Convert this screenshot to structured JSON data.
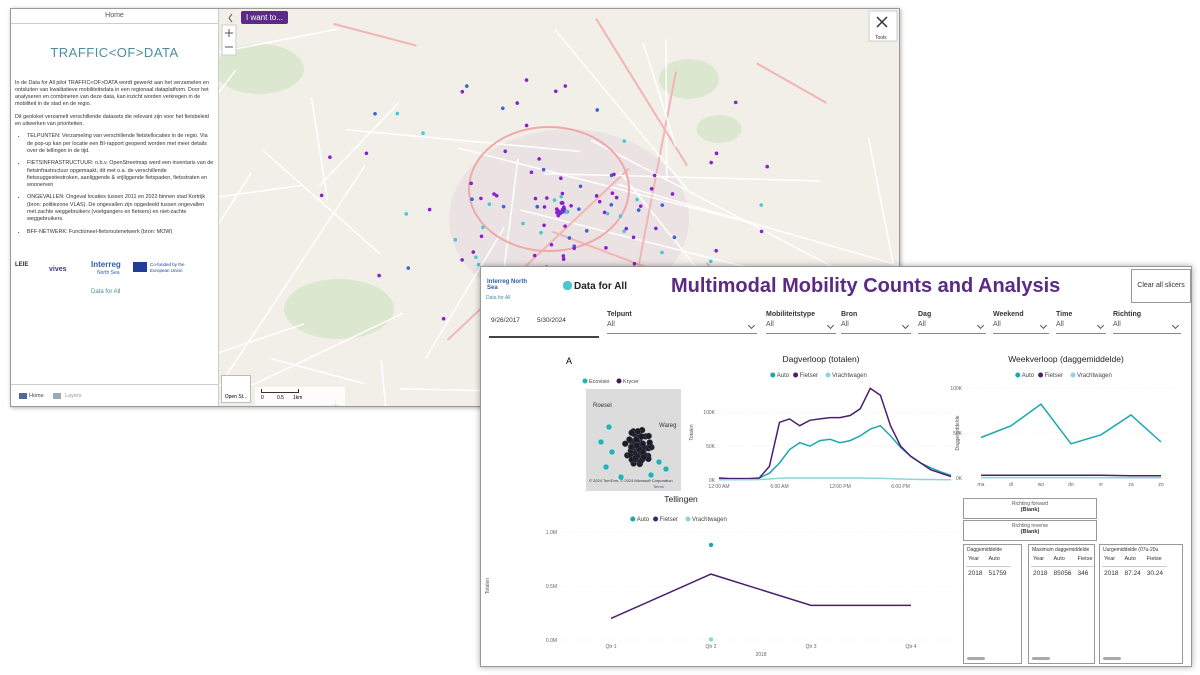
{
  "map_app": {
    "sidebar_tab": "Home",
    "title": "TRAFFIC<OF>DATA",
    "intro": "In de Data for All pilot TRAFFIC<OF>DATA wordt gewerkt aan het verzamelen en ontsluiten van kwalitatieve mobiliteitsdata in een regionaal dataplatform. Door het analyseren en combineren van deze data, kan inzicht worden verkregen in de mobiliteit in de stad en de regio.",
    "paragraph": "Dit geoloket verzamelt verschillende datasets die relevant zijn voor het fietsbeleid en uitwerken van prioriteiten.",
    "bullets": [
      "TELPUNTEN: Verzameling van verschillende fietstellocaties in de regio. Via de pop-up kan per locatie een BI-rapport geopend worden met meer details over de tellingen in de tijd.",
      "FIETSINFRASTRUCTUUR: o.b.v. OpenStreetmap werd een inventaris van de fietsinfrastructuur opgemaakt, dit met o.a. de verschillende fietssuggestiestroken, aanliggende & vrijliggende fietspaden, fietsstraten en woonerven",
      "ONGEVALLEN: Ongeval locaties tussen 2011 en 2022 binnen stad Kortrijk (bron: politiezone VLAS). De ongevallen zijn opgedeeld tussen ongevallen met zachte weggebruikers (voetgangers en fietsers) en niet-zachte weggebruikers.",
      "BFF-NETWERK: Functioneel-fietsroutenetwerk (bron: MOW)"
    ],
    "logos": [
      "LEIE",
      "vives",
      "Interreg",
      "North Sea",
      "Co-funded by the European Union"
    ],
    "link": "Data for All",
    "tabs": [
      "Home",
      "Layers"
    ],
    "button": "I want to...",
    "tools": "Tools",
    "basemap": "Open St...",
    "scale": [
      "0",
      "0.5",
      "1km"
    ]
  },
  "dashboard": {
    "title": "Multimodal Mobility Counts and Analysis",
    "logo": "Data for All",
    "partner": "Interreg North Sea",
    "link": "Data for All",
    "clear": "Clear all slicers",
    "date_range": [
      "9/26/2017",
      "5/30/2024"
    ],
    "slicers": [
      {
        "label": "Telpunt",
        "value": "All"
      },
      {
        "label": "Mobiliteitstype",
        "value": "All"
      },
      {
        "label": "Bron",
        "value": "All"
      },
      {
        "label": "Dag",
        "value": "All"
      },
      {
        "label": "Weekend",
        "value": "All"
      },
      {
        "label": "Time",
        "value": "All"
      },
      {
        "label": "Richting",
        "value": "All"
      }
    ],
    "map_visual": {
      "title": "A",
      "legend": [
        {
          "name": "Ecovisio",
          "color": "#27b0b5"
        },
        {
          "name": "Krycer",
          "color": "#3d1a5c"
        }
      ],
      "places": [
        "Roesel",
        "Wareg"
      ],
      "credit": "© 2024 TomTom, © 2024 Microsoft Corporation",
      "terms": "Terms"
    },
    "charts": [
      {
        "type": "line",
        "title": "Dagverloop (totalen)",
        "ylabel": "Totalen",
        "categories": [
          "12:00 AM",
          null,
          null,
          null,
          null,
          null,
          "6:00 AM",
          null,
          null,
          null,
          null,
          null,
          "12:00 PM",
          null,
          null,
          null,
          null,
          null,
          "6:00 PM",
          null,
          null,
          null,
          null,
          null
        ],
        "series": [
          {
            "name": "Auto",
            "color": "#1aa7b0",
            "values": [
              3000,
              2000,
              2000,
              2000,
              3000,
              10000,
              25000,
              45000,
              55000,
              50000,
              58000,
              60000,
              55000,
              58000,
              65000,
              75000,
              80000,
              65000,
              48000,
              35000,
              25000,
              18000,
              12000,
              7000
            ]
          },
          {
            "name": "Fietser",
            "color": "#4b1f6f",
            "values": [
              3000,
              2000,
              2000,
              2000,
              3000,
              20000,
              85000,
              90000,
              80000,
              88000,
              90000,
              92000,
              92000,
              95000,
              105000,
              135000,
              125000,
              80000,
              50000,
              35000,
              25000,
              15000,
              10000,
              5000
            ]
          },
          {
            "name": "Vrachtwagen",
            "color": "#8fd4d8",
            "values": [
              500,
              500,
              500,
              500,
              800,
              1500,
              2500,
              3000,
              3000,
              3000,
              3000,
              3000,
              3000,
              3000,
              3000,
              2500,
              2500,
              2000,
              1500,
              1000,
              800,
              700,
              600,
              500
            ]
          }
        ],
        "ylim": [
          0,
          140000
        ],
        "yticks": [
          {
            "value": 0,
            "label": "0K"
          },
          {
            "value": 50000,
            "label": "50K"
          },
          {
            "value": 100000,
            "label": "100K"
          }
        ],
        "grid": true
      },
      {
        "type": "line",
        "title": "Weekverloop (daggemiddelde)",
        "ylabel": "Daggemiddelde",
        "categories": [
          "ma",
          "di",
          "wo",
          "do",
          "vr",
          "za",
          "zo"
        ],
        "series": [
          {
            "name": "Auto",
            "color": "#1aa7b0",
            "values": [
              45000,
              58000,
              82000,
              38000,
              48000,
              70000,
              40000
            ]
          },
          {
            "name": "Fietser",
            "color": "#4b1f6f",
            "values": [
              3000,
              3000,
              3000,
              3000,
              3000,
              2500,
              2500
            ]
          },
          {
            "name": "Vrachtwagen",
            "color": "#8fd4d8",
            "values": [
              500,
              500,
              500,
              500,
              500,
              300,
              300
            ]
          }
        ],
        "ylim": [
          0,
          100000
        ],
        "yticks": [
          {
            "value": 0,
            "label": "0K"
          },
          {
            "value": 50000,
            "label": "50K"
          },
          {
            "value": 100000,
            "label": "100K"
          }
        ],
        "grid": true
      },
      {
        "type": "line",
        "title": "Tellingen",
        "ylabel": "Totalen",
        "xlabel": "2018",
        "categories": [
          "Qtr 1",
          "Qtr 2",
          "Qtr 3",
          "Qtr 4"
        ],
        "series": [
          {
            "name": "Auto",
            "color": "#1aa7b0",
            "values": [
              null,
              880000,
              null,
              null
            ]
          },
          {
            "name": "Fietser",
            "color": "#4b1f6f",
            "values": [
              200000,
              610000,
              320000,
              320000
            ]
          },
          {
            "name": "Vrachtwagen",
            "color": "#8fd4d8",
            "values": [
              null,
              5000,
              null,
              null
            ]
          }
        ],
        "ylim": [
          0,
          1000000
        ],
        "yticks": [
          {
            "value": 0,
            "label": "0.0M"
          },
          {
            "value": 500000,
            "label": "0.5M"
          },
          {
            "value": 1000000,
            "label": "1.0M"
          }
        ],
        "grid": true
      }
    ],
    "cards": [
      {
        "title": "Richting forward",
        "value": "(Blank)"
      },
      {
        "title": "Richting reverse",
        "value": "(Blank)"
      }
    ],
    "tables": [
      {
        "title": "Daggemiddelde",
        "columns": [
          "Year",
          "Auto"
        ],
        "rows": [
          [
            2018,
            51759
          ]
        ]
      },
      {
        "title": "Maximum daggemiddelde",
        "columns": [
          "Year",
          "Auto",
          "Fietse"
        ],
        "rows": [
          [
            2018,
            85056,
            346
          ]
        ]
      },
      {
        "title": "Uurgemiddelde (07u-20u",
        "columns": [
          "Year",
          "Auto",
          "Fietse"
        ],
        "rows": [
          [
            2018,
            87.24,
            30.24
          ]
        ]
      }
    ]
  }
}
